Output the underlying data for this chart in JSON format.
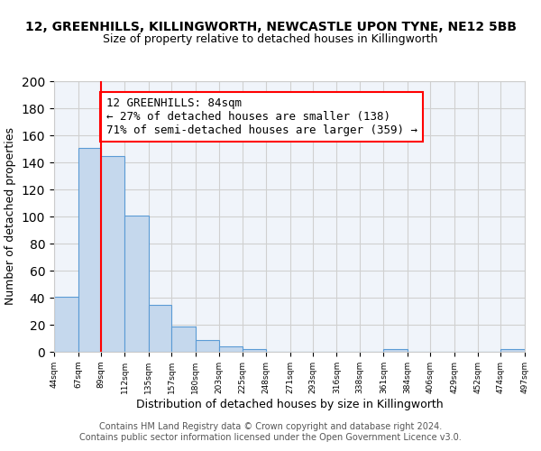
{
  "title_line1": "12, GREENHILLS, KILLINGWORTH, NEWCASTLE UPON TYNE, NE12 5BB",
  "title_line2": "Size of property relative to detached houses in Killingworth",
  "xlabel": "Distribution of detached houses by size in Killingworth",
  "ylabel": "Number of detached properties",
  "bins": [
    44,
    67,
    89,
    112,
    135,
    157,
    180,
    203,
    225,
    248,
    271,
    293,
    316,
    338,
    361,
    384,
    406,
    429,
    452,
    474,
    497
  ],
  "counts": [
    41,
    151,
    145,
    101,
    35,
    19,
    9,
    4,
    2,
    0,
    0,
    0,
    0,
    0,
    2,
    0,
    0,
    0,
    0,
    2,
    0
  ],
  "bar_color": "#c5d8ed",
  "bar_edge_color": "#5b9bd5",
  "property_size": 84,
  "red_line_x": 89,
  "annotation_text": "12 GREENHILLS: 84sqm\n← 27% of detached houses are smaller (138)\n71% of semi-detached houses are larger (359) →",
  "annotation_box_color": "white",
  "annotation_box_edge_color": "red",
  "annotation_fontsize": 9,
  "ylim": [
    0,
    200
  ],
  "yticks": [
    0,
    20,
    40,
    60,
    80,
    100,
    120,
    140,
    160,
    180,
    200
  ],
  "tick_labels": [
    "44sqm",
    "67sqm",
    "89sqm",
    "112sqm",
    "135sqm",
    "157sqm",
    "180sqm",
    "203sqm",
    "225sqm",
    "248sqm",
    "271sqm",
    "293sqm",
    "316sqm",
    "338sqm",
    "361sqm",
    "384sqm",
    "406sqm",
    "429sqm",
    "452sqm",
    "474sqm",
    "497sqm"
  ],
  "grid_color": "#d0d0d0",
  "background_color": "#f0f4fa",
  "footer_text": "Contains HM Land Registry data © Crown copyright and database right 2024.\nContains public sector information licensed under the Open Government Licence v3.0.",
  "title_fontsize": 10,
  "subtitle_fontsize": 9,
  "xlabel_fontsize": 9,
  "ylabel_fontsize": 9,
  "footer_fontsize": 7
}
